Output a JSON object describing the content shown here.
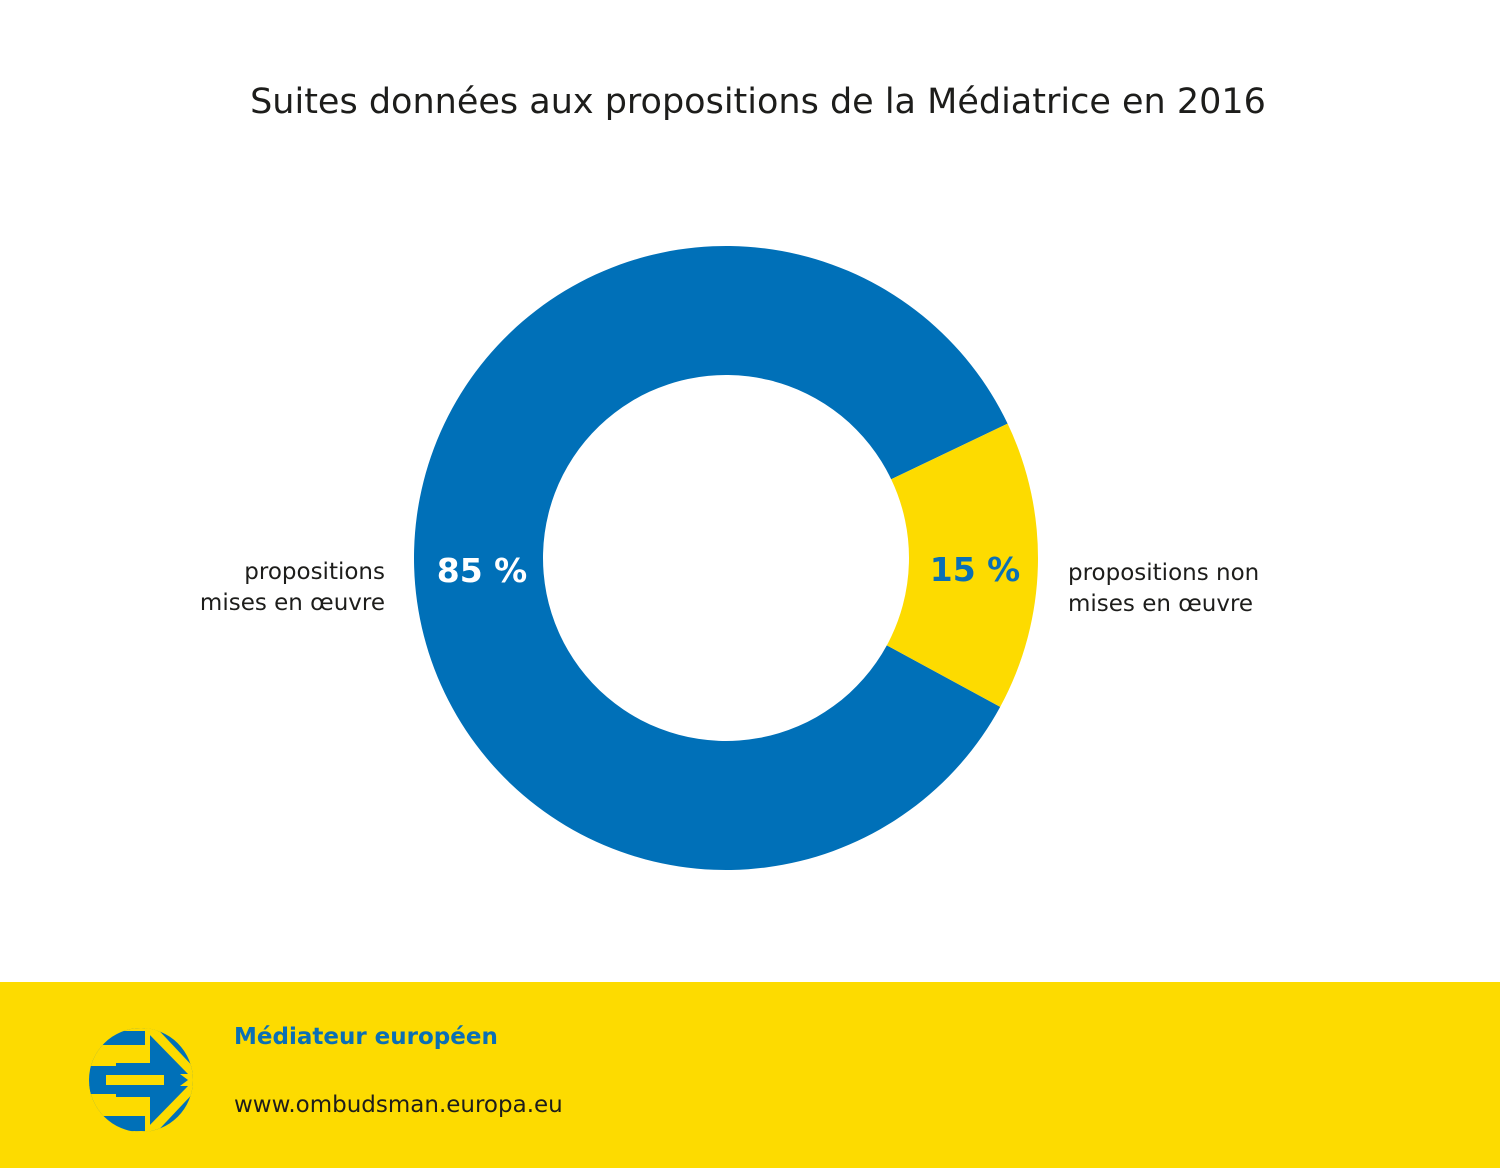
{
  "chart_data": {
    "type": "pie",
    "variant": "donut",
    "title": "Suites données aux propositions de la Médiatrice en 2016",
    "slices": [
      {
        "label_line1": "propositions",
        "label_line2": "mises en œuvre",
        "value": 85,
        "value_label": "85 %",
        "color": "#0070b8"
      },
      {
        "label_line1": "propositions non",
        "label_line2": "mises en œuvre",
        "value": 15,
        "value_label": "15 %",
        "color": "#fddb00"
      }
    ]
  },
  "footer": {
    "organization": "Médiateur européen",
    "url": "www.ombudsman.europa.eu"
  }
}
